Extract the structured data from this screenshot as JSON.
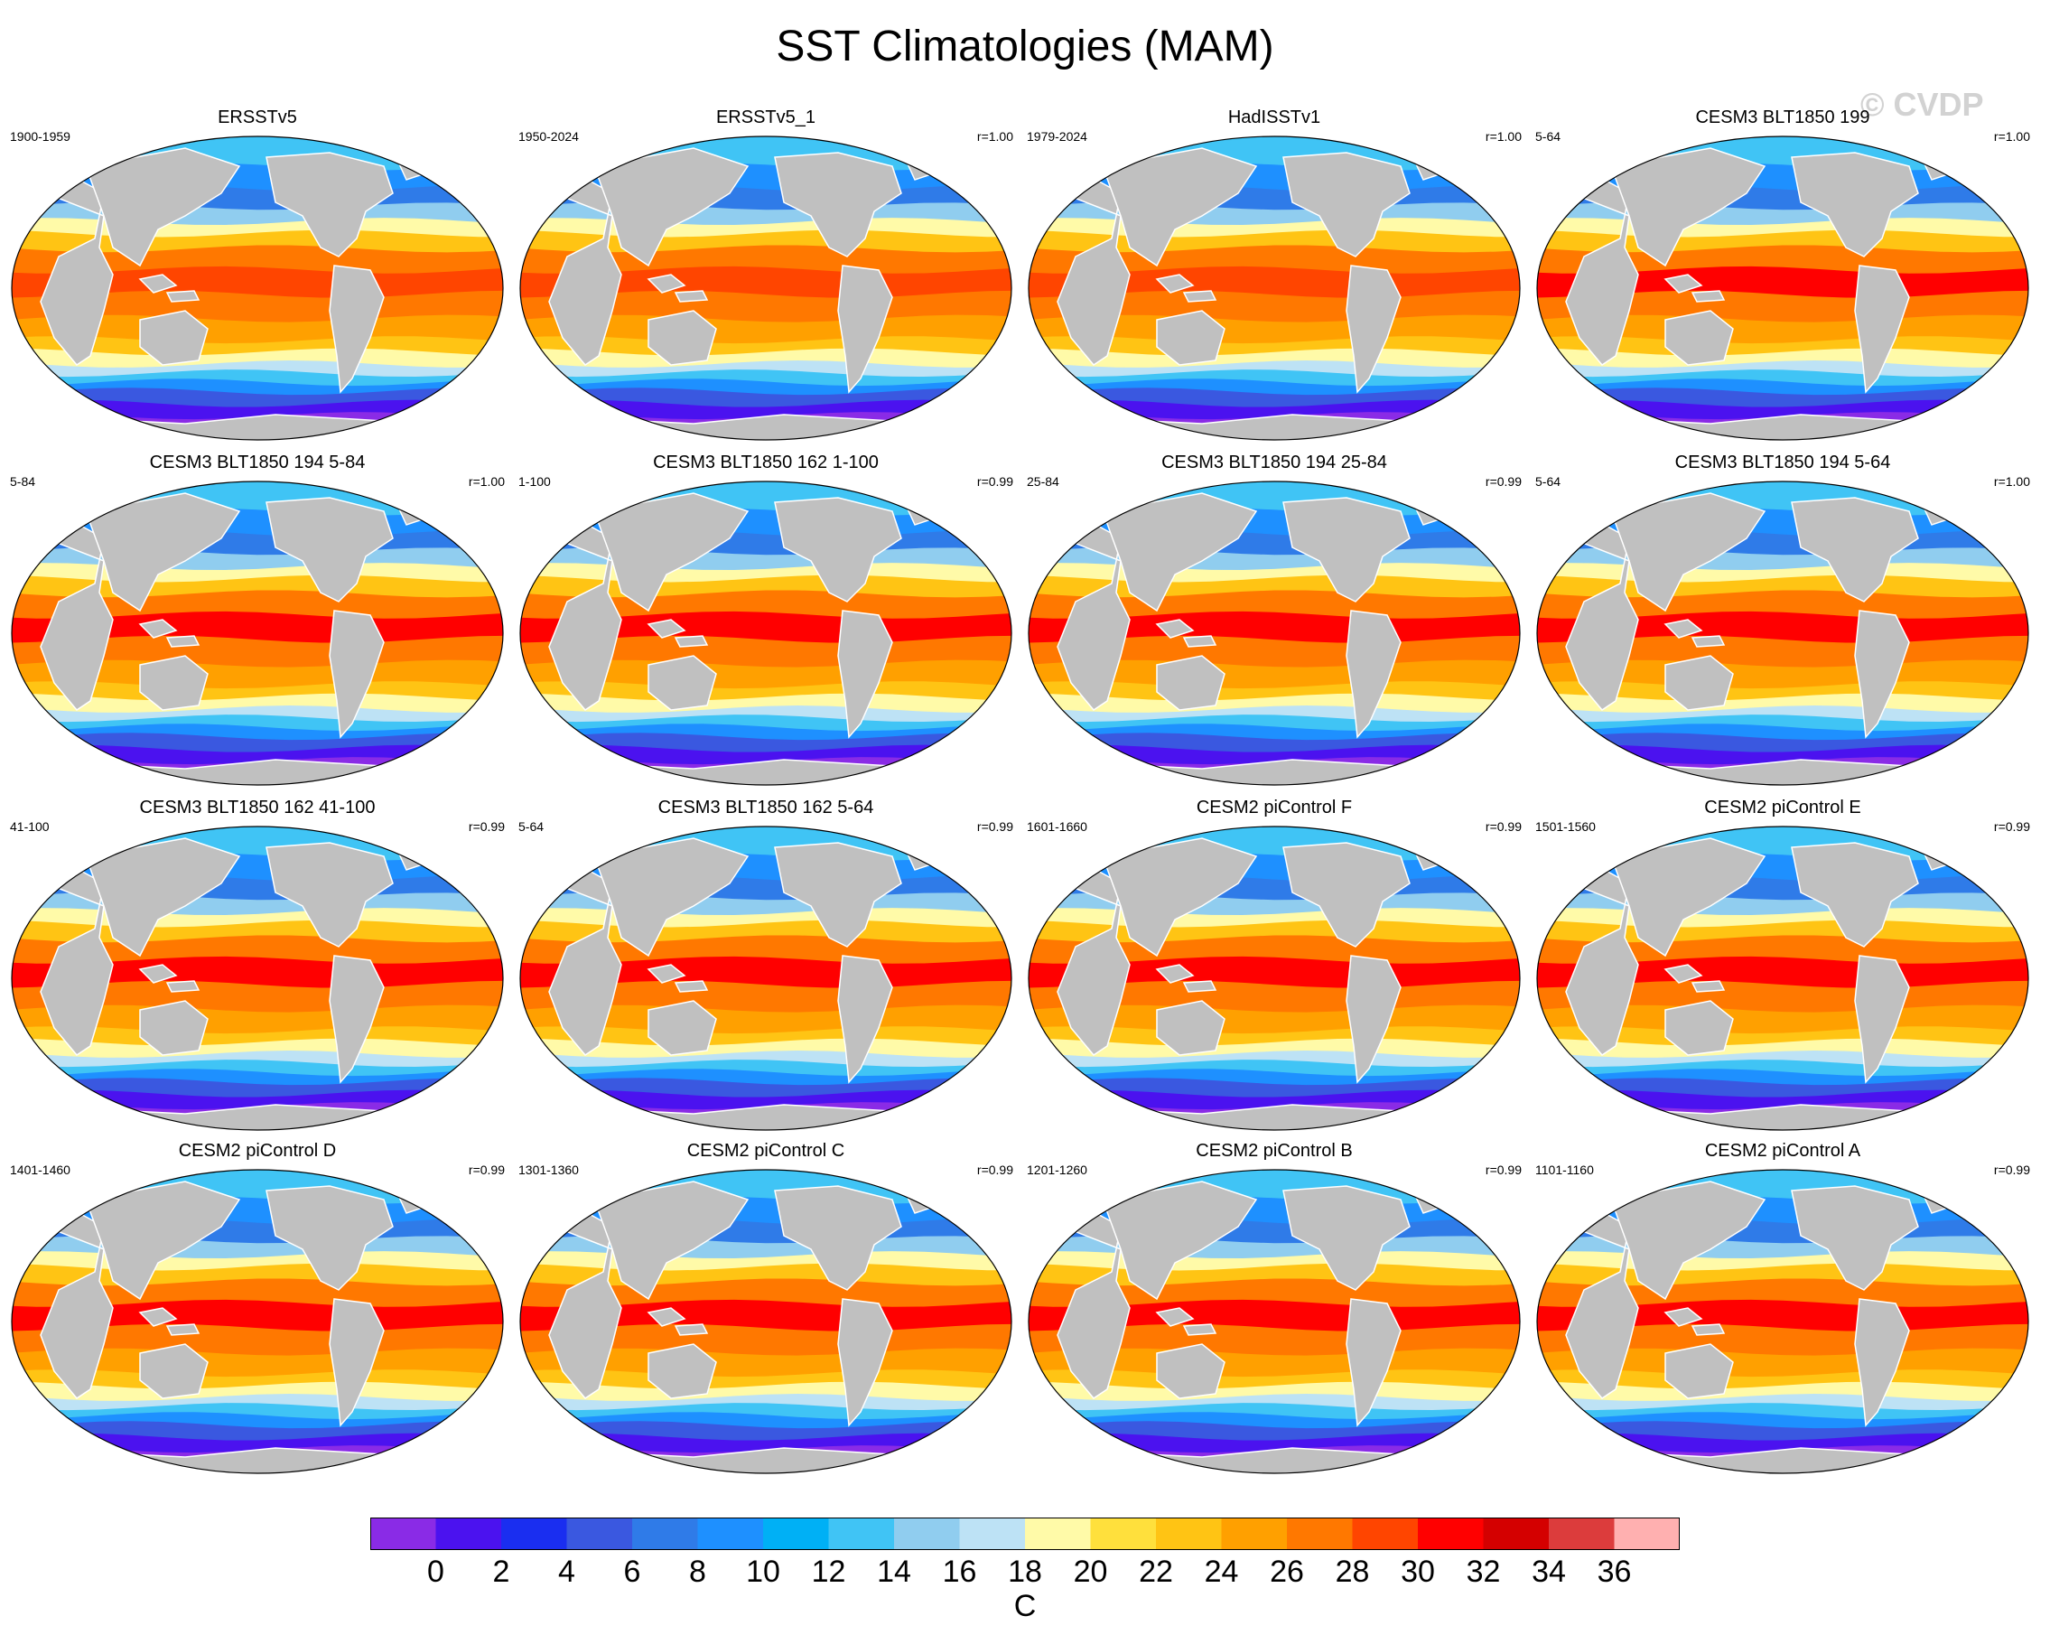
{
  "title": "SST Climatologies (MAM)",
  "watermark": "© CVDP",
  "panels": [
    {
      "title": "ERSSTv5",
      "left": "1900-1959",
      "right": "",
      "map": "obs"
    },
    {
      "title": "ERSSTv5_1",
      "left": "1950-2024",
      "right": "r=1.00",
      "map": "obs"
    },
    {
      "title": "HadISSTv1",
      "left": "1979-2024",
      "right": "r=1.00",
      "map": "obs"
    },
    {
      "title": "CESM3 BLT1850 199",
      "left": "5-64",
      "right": "r=1.00",
      "map": "model"
    },
    {
      "title": "CESM3 BLT1850 194 5-84",
      "left": "5-84",
      "right": "r=1.00",
      "map": "model"
    },
    {
      "title": "CESM3 BLT1850 162 1-100",
      "left": "1-100",
      "right": "r=0.99",
      "map": "model"
    },
    {
      "title": "CESM3 BLT1850 194 25-84",
      "left": "25-84",
      "right": "r=0.99",
      "map": "model"
    },
    {
      "title": "CESM3 BLT1850 194 5-64",
      "left": "5-64",
      "right": "r=1.00",
      "map": "model"
    },
    {
      "title": "CESM3 BLT1850 162 41-100",
      "left": "41-100",
      "right": "r=0.99",
      "map": "model"
    },
    {
      "title": "CESM3 BLT1850 162 5-64",
      "left": "5-64",
      "right": "r=0.99",
      "map": "model"
    },
    {
      "title": "CESM2 piControl F",
      "left": "1601-1660",
      "right": "r=0.99",
      "map": "model"
    },
    {
      "title": "CESM2 piControl E",
      "left": "1501-1560",
      "right": "r=0.99",
      "map": "model"
    },
    {
      "title": "CESM2 piControl D",
      "left": "1401-1460",
      "right": "r=0.99",
      "map": "model"
    },
    {
      "title": "CESM2 piControl C",
      "left": "1301-1360",
      "right": "r=0.99",
      "map": "model"
    },
    {
      "title": "CESM2 piControl B",
      "left": "1201-1260",
      "right": "r=0.99",
      "map": "model"
    },
    {
      "title": "CESM2 piControl A",
      "left": "1101-1160",
      "right": "r=0.99",
      "map": "model"
    }
  ],
  "colorbar": {
    "unit": "C",
    "labels": [
      "0",
      "2",
      "4",
      "6",
      "8",
      "10",
      "12",
      "14",
      "16",
      "18",
      "20",
      "22",
      "24",
      "26",
      "28",
      "30",
      "32",
      "34",
      "36"
    ],
    "colors": [
      "#8a2be6",
      "#4b12ef",
      "#1a2ef0",
      "#3a58e0",
      "#2f7be8",
      "#1e90ff",
      "#00b0f5",
      "#40c4f5",
      "#90cdef",
      "#bde2f5",
      "#fffaa8",
      "#ffe03c",
      "#ffc414",
      "#ffa000",
      "#ff7800",
      "#ff4500",
      "#ff0000",
      "#d40000",
      "#dc3c3c",
      "#ffb0b0"
    ]
  }
}
